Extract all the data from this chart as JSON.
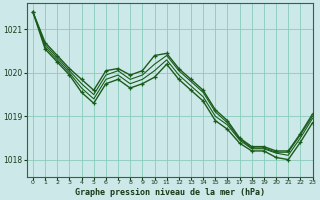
{
  "title": "Graphe pression niveau de la mer (hPa)",
  "background_color": "#cce8e8",
  "grid_color": "#88ccbb",
  "line_color": "#1a5c1a",
  "xlim": [
    -0.5,
    23
  ],
  "ylim": [
    1017.6,
    1021.6
  ],
  "yticks": [
    1018,
    1019,
    1020,
    1021
  ],
  "xticks": [
    0,
    1,
    2,
    3,
    4,
    5,
    6,
    7,
    8,
    9,
    10,
    11,
    12,
    13,
    14,
    15,
    16,
    17,
    18,
    19,
    20,
    21,
    22,
    23
  ],
  "series": [
    {
      "y": [
        1021.4,
        1020.7,
        1020.4,
        1020.1,
        1019.85,
        1019.6,
        1020.05,
        1020.1,
        1019.95,
        1020.05,
        1020.4,
        1020.45,
        1020.1,
        1019.85,
        1019.6,
        1019.15,
        1018.9,
        1018.5,
        1018.3,
        1018.3,
        1018.2,
        1018.2,
        1018.6,
        1019.05
      ],
      "marker": true,
      "lw": 1.0
    },
    {
      "y": [
        1021.4,
        1020.65,
        1020.35,
        1020.05,
        1019.75,
        1019.5,
        1019.95,
        1020.05,
        1019.85,
        1019.95,
        1020.2,
        1020.4,
        1020.05,
        1019.8,
        1019.55,
        1019.1,
        1018.85,
        1018.48,
        1018.27,
        1018.27,
        1018.17,
        1018.17,
        1018.57,
        1019.0
      ],
      "marker": false,
      "lw": 0.8
    },
    {
      "y": [
        1021.4,
        1020.6,
        1020.3,
        1020.0,
        1019.65,
        1019.4,
        1019.85,
        1019.95,
        1019.75,
        1019.85,
        1020.05,
        1020.3,
        1019.95,
        1019.7,
        1019.45,
        1019.0,
        1018.8,
        1018.45,
        1018.25,
        1018.25,
        1018.15,
        1018.1,
        1018.5,
        1018.95
      ],
      "marker": false,
      "lw": 0.8
    },
    {
      "y": [
        1021.4,
        1020.55,
        1020.25,
        1019.95,
        1019.55,
        1019.3,
        1019.75,
        1019.85,
        1019.65,
        1019.75,
        1019.9,
        1020.2,
        1019.85,
        1019.6,
        1019.35,
        1018.9,
        1018.7,
        1018.38,
        1018.2,
        1018.2,
        1018.05,
        1018.0,
        1018.4,
        1018.85
      ],
      "marker": true,
      "lw": 1.0
    }
  ],
  "figsize": [
    3.2,
    2.0
  ],
  "dpi": 100
}
